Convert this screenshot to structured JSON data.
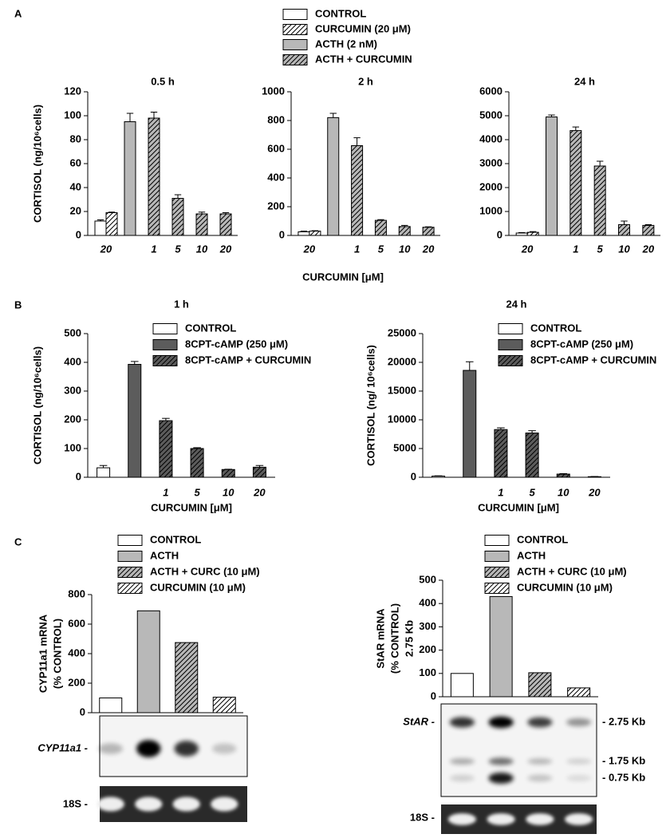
{
  "chart_data": [
    {
      "type": "bar",
      "panel": "A",
      "title": "0.5 h",
      "ylabel": "CORTISOL (ng/10⁶cells)",
      "categories": [
        "20",
        null,
        "1",
        "5",
        "10",
        "20"
      ],
      "series": [
        {
          "name": "CONTROL",
          "color": "#ffffff",
          "pattern": "solid",
          "values": [
            12,
            null,
            null,
            null,
            null,
            null
          ],
          "errors": [
            1,
            null,
            null,
            null,
            null,
            null
          ]
        },
        {
          "name": "CURCUMIN (20 μM)",
          "color": "#ffffff",
          "pattern": "hatch",
          "values": [
            19,
            null,
            null,
            null,
            null,
            null
          ],
          "errors": [
            0.5,
            null,
            null,
            null,
            null,
            null
          ]
        },
        {
          "name": "ACTH (2 nM)",
          "color": "#b8b8b8",
          "pattern": "solid",
          "values": [
            null,
            95,
            null,
            null,
            null,
            null
          ],
          "errors": [
            null,
            7,
            null,
            null,
            null,
            null
          ]
        },
        {
          "name": "ACTH + CURCUMIN",
          "color": "#b8b8b8",
          "pattern": "hatch",
          "values": [
            null,
            null,
            98,
            31,
            18,
            18
          ],
          "errors": [
            null,
            null,
            5,
            3,
            1.5,
            1
          ]
        }
      ],
      "ylim": [
        0,
        120
      ],
      "yticks": [
        0,
        20,
        40,
        60,
        80,
        100,
        120
      ]
    },
    {
      "type": "bar",
      "title": "2 h",
      "xlabel": "CURCUMIN [μM]",
      "categories": [
        "20",
        null,
        "1",
        "5",
        "10",
        "20"
      ],
      "series": [
        {
          "color": "#ffffff",
          "pattern": "solid",
          "values": [
            25,
            null,
            null,
            null,
            null,
            null
          ],
          "errors": [
            5,
            null,
            null,
            null,
            null,
            null
          ]
        },
        {
          "color": "#ffffff",
          "pattern": "hatch",
          "values": [
            30,
            null,
            null,
            null,
            null,
            null
          ],
          "errors": [
            3,
            null,
            null,
            null,
            null,
            null
          ]
        },
        {
          "color": "#b8b8b8",
          "pattern": "solid",
          "values": [
            null,
            820,
            null,
            null,
            null,
            null
          ],
          "errors": [
            null,
            30,
            null,
            null,
            null,
            null
          ]
        },
        {
          "color": "#b8b8b8",
          "pattern": "hatch",
          "values": [
            null,
            null,
            625,
            105,
            62,
            57
          ],
          "errors": [
            null,
            null,
            55,
            5,
            8,
            3
          ]
        }
      ],
      "ylim": [
        0,
        1000
      ],
      "yticks": [
        0,
        200,
        400,
        600,
        800,
        1000
      ]
    },
    {
      "type": "bar",
      "title": "24 h",
      "categories": [
        "20",
        null,
        "1",
        "5",
        "10",
        "20"
      ],
      "series": [
        {
          "color": "#ffffff",
          "pattern": "solid",
          "values": [
            100,
            null,
            null,
            null,
            null,
            null
          ],
          "errors": [
            20,
            null,
            null,
            null,
            null,
            null
          ]
        },
        {
          "color": "#ffffff",
          "pattern": "hatch",
          "values": [
            130,
            null,
            null,
            null,
            null,
            null
          ],
          "errors": [
            30,
            null,
            null,
            null,
            null,
            null
          ]
        },
        {
          "color": "#b8b8b8",
          "pattern": "solid",
          "values": [
            null,
            4950,
            null,
            null,
            null,
            null
          ],
          "errors": [
            null,
            80,
            null,
            null,
            null,
            null
          ]
        },
        {
          "color": "#b8b8b8",
          "pattern": "hatch",
          "values": [
            null,
            null,
            4380,
            2900,
            450,
            420
          ],
          "errors": [
            null,
            null,
            150,
            200,
            150,
            30
          ]
        }
      ],
      "ylim": [
        0,
        6000
      ],
      "yticks": [
        0,
        1000,
        2000,
        3000,
        4000,
        5000,
        6000
      ]
    },
    {
      "type": "bar",
      "panel": "B",
      "title": "1 h",
      "ylabel": "CORTISOL (ng/10⁶cells)",
      "xlabel": "CURCUMIN [μM]",
      "categories": [
        null,
        null,
        "1",
        "5",
        "10",
        "20"
      ],
      "series": [
        {
          "name": "CONTROL",
          "color": "#ffffff",
          "pattern": "solid",
          "values": [
            33,
            null,
            null,
            null,
            null,
            null
          ],
          "errors": [
            8,
            null,
            null,
            null,
            null,
            null
          ]
        },
        {
          "name": "8CPT-cAMP (250 μM)",
          "color": "#5c5c5c",
          "pattern": "solid",
          "values": [
            null,
            393,
            null,
            null,
            null,
            null
          ],
          "errors": [
            null,
            10,
            null,
            null,
            null,
            null
          ]
        },
        {
          "name": "8CPT-cAMP + CURCUMIN",
          "color": "#5c5c5c",
          "pattern": "hatch",
          "values": [
            null,
            null,
            197,
            100,
            27,
            35
          ],
          "errors": [
            null,
            null,
            8,
            3,
            1,
            6
          ]
        }
      ],
      "ylim": [
        0,
        500
      ],
      "yticks": [
        0,
        100,
        200,
        300,
        400,
        500
      ]
    },
    {
      "type": "bar",
      "title": "24 h",
      "ylabel": "CORTISOL (ng/ 10⁶cells)",
      "xlabel": "CURCUMIN [μM]",
      "categories": [
        null,
        null,
        "1",
        "5",
        "10",
        "20"
      ],
      "series": [
        {
          "name": "CONTROL",
          "color": "#ffffff",
          "pattern": "solid",
          "values": [
            200,
            null,
            null,
            null,
            null,
            null
          ],
          "errors": [
            50,
            null,
            null,
            null,
            null,
            null
          ]
        },
        {
          "name": "8CPT-cAMP (250 μM)",
          "color": "#5c5c5c",
          "pattern": "solid",
          "values": [
            null,
            18600,
            null,
            null,
            null,
            null
          ],
          "errors": [
            null,
            1500,
            null,
            null,
            null,
            null
          ]
        },
        {
          "name": "8CPT-cAMP + CURCUMIN",
          "color": "#5c5c5c",
          "pattern": "hatch",
          "values": [
            null,
            null,
            8300,
            7700,
            550,
            100
          ],
          "errors": [
            null,
            null,
            300,
            400,
            80,
            30
          ]
        }
      ],
      "ylim": [
        0,
        25000
      ],
      "yticks": [
        0,
        5000,
        10000,
        15000,
        20000,
        25000
      ]
    },
    {
      "type": "bar",
      "panel": "C",
      "ylabel": [
        "CYP11a1 mRNA",
        "(% CONTROL)"
      ],
      "categories": [
        null,
        null,
        null,
        null
      ],
      "series": [
        {
          "name": "CONTROL",
          "color": "#ffffff",
          "pattern": "solid",
          "values": [
            100,
            null,
            null,
            null
          ]
        },
        {
          "name": "ACTH",
          "color": "#b8b8b8",
          "pattern": "solid",
          "values": [
            null,
            690,
            null,
            null
          ]
        },
        {
          "name": "ACTH + CURC (10 μM)",
          "color": "#b8b8b8",
          "pattern": "hatch",
          "values": [
            null,
            null,
            475,
            null
          ]
        },
        {
          "name": "CURCUMIN (10 μM)",
          "color": "#ffffff",
          "pattern": "hatch",
          "values": [
            null,
            null,
            null,
            105
          ]
        }
      ],
      "ylim": [
        0,
        800
      ],
      "yticks": [
        0,
        200,
        400,
        600,
        800
      ],
      "blot_labels": [
        "CYP11a1 -",
        "18S -"
      ]
    },
    {
      "type": "bar",
      "ylabel": [
        "StAR mRNA",
        "(% CONTROL)",
        "2.75 Kb"
      ],
      "categories": [
        null,
        null,
        null,
        null
      ],
      "series": [
        {
          "name": "CONTROL",
          "color": "#ffffff",
          "pattern": "solid",
          "values": [
            100,
            null,
            null,
            null
          ]
        },
        {
          "name": "ACTH",
          "color": "#b8b8b8",
          "pattern": "solid",
          "values": [
            null,
            430,
            null,
            null
          ]
        },
        {
          "name": "ACTH + CURC (10 μM)",
          "color": "#b8b8b8",
          "pattern": "hatch",
          "values": [
            null,
            null,
            103,
            null
          ]
        },
        {
          "name": "CURCUMIN (10 μM)",
          "color": "#ffffff",
          "pattern": "hatch",
          "values": [
            null,
            null,
            null,
            38
          ]
        }
      ],
      "ylim": [
        0,
        500
      ],
      "yticks": [
        0,
        100,
        200,
        300,
        400,
        500
      ],
      "blot_labels": [
        "StAR -",
        "- 2.75 Kb",
        "- 1.75 Kb",
        "- 0.75 Kb",
        "18S -"
      ]
    }
  ]
}
